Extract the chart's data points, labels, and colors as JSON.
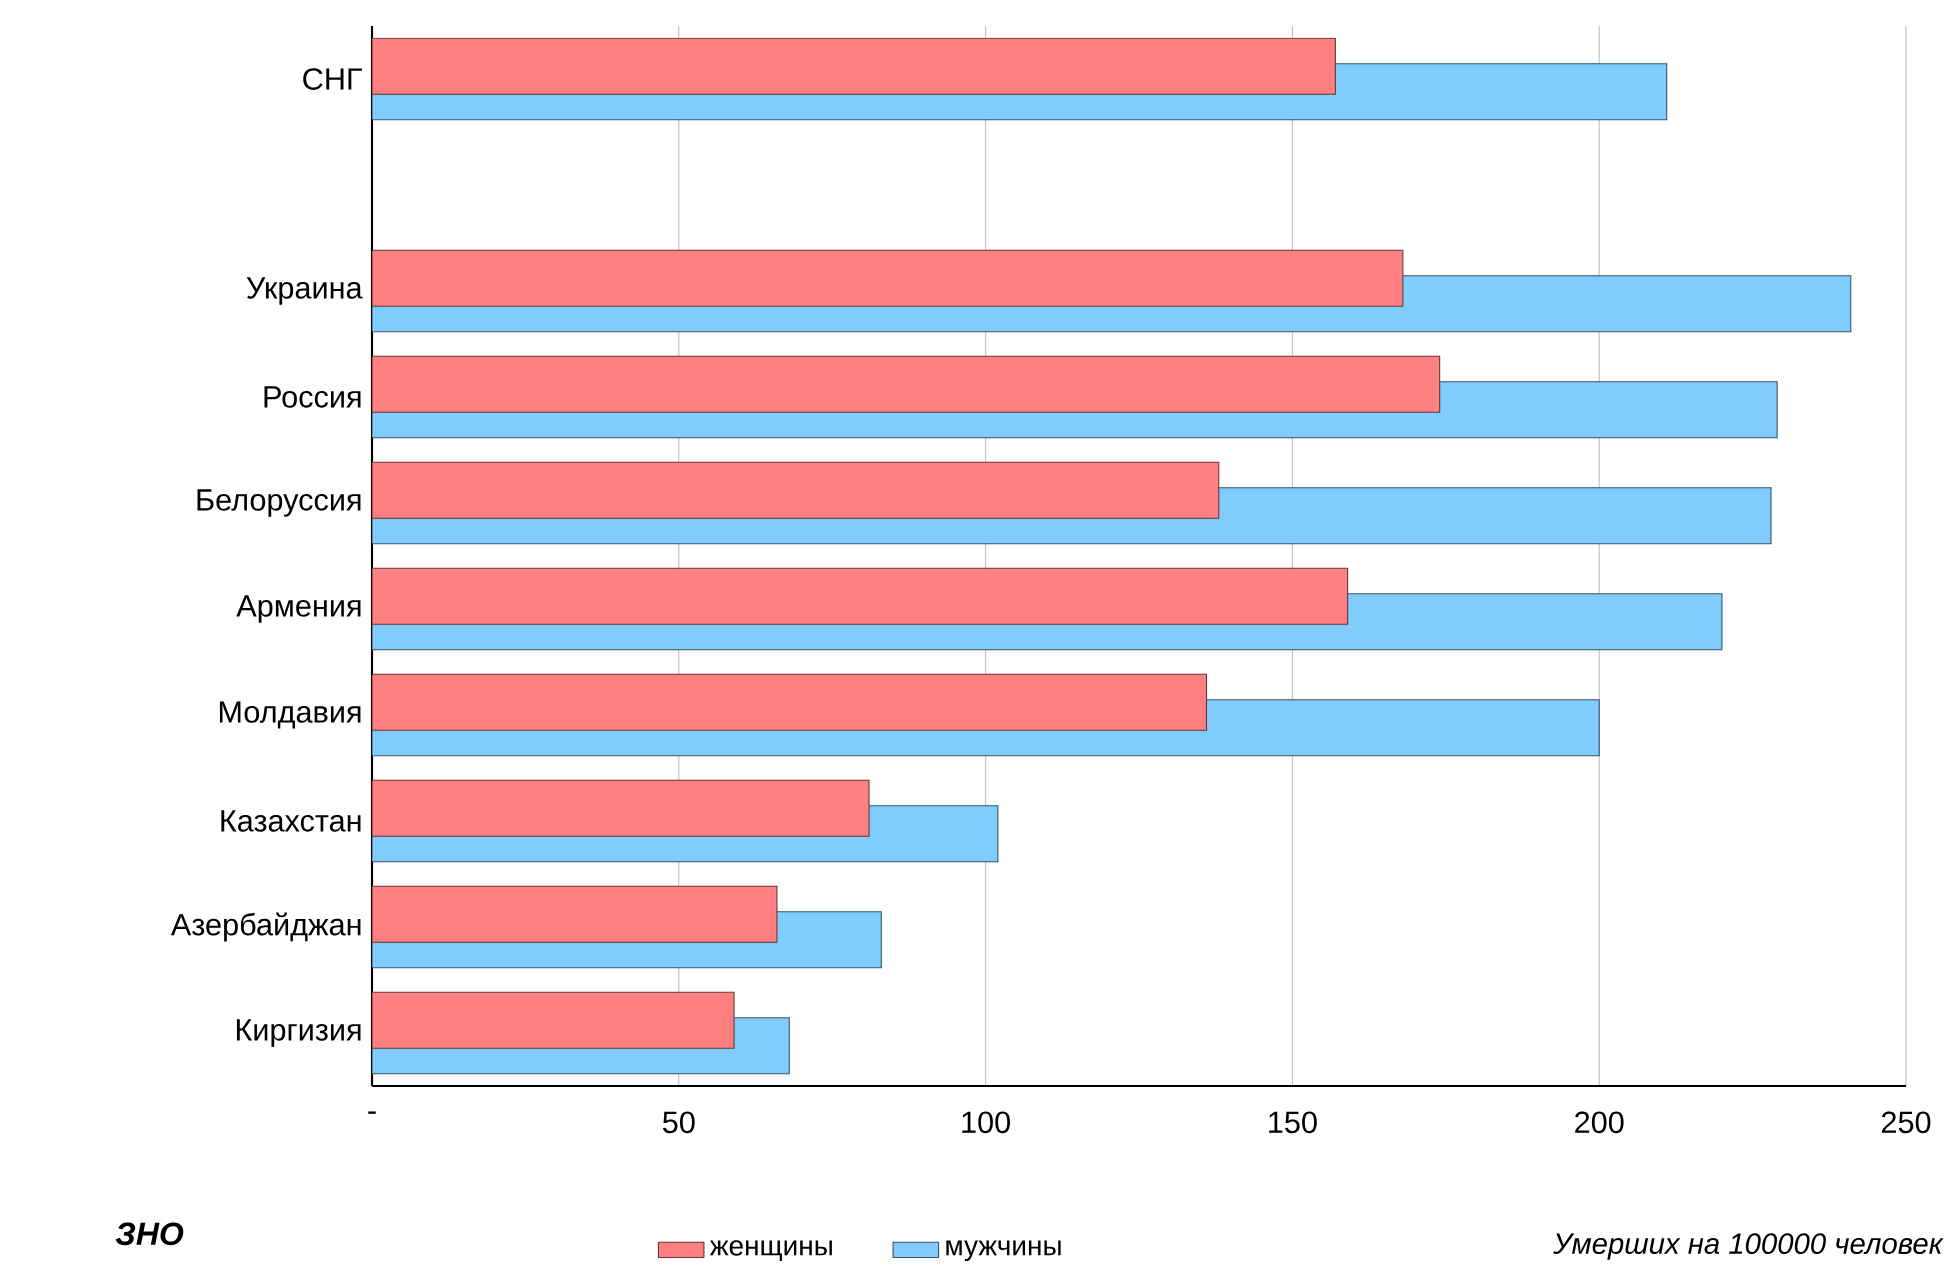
{
  "chart_data": {
    "type": "bar",
    "orientation": "horizontal",
    "title": "ЗНО",
    "xlabel": "Умерших на 100000 человек",
    "categories": [
      "СНГ",
      null,
      "Украина",
      "Россия",
      "Белоруссия",
      "Армения",
      "Молдавия",
      "Казахстан",
      "Азербайджан",
      "Киргизия"
    ],
    "series": [
      {
        "name": "женщины",
        "color": "#ff8080",
        "values": [
          157,
          null,
          168,
          174,
          138,
          159,
          136,
          81,
          66,
          59
        ]
      },
      {
        "name": "мужчины",
        "color": "#80ccff",
        "values": [
          211,
          null,
          241,
          229,
          228,
          220,
          200,
          102,
          83,
          68
        ]
      }
    ],
    "xlim": [
      0,
      250
    ],
    "xticks": [
      {
        "value": 0,
        "label": "-"
      },
      50,
      100,
      150,
      200,
      250
    ],
    "grid": "x",
    "legend": "bottom"
  }
}
